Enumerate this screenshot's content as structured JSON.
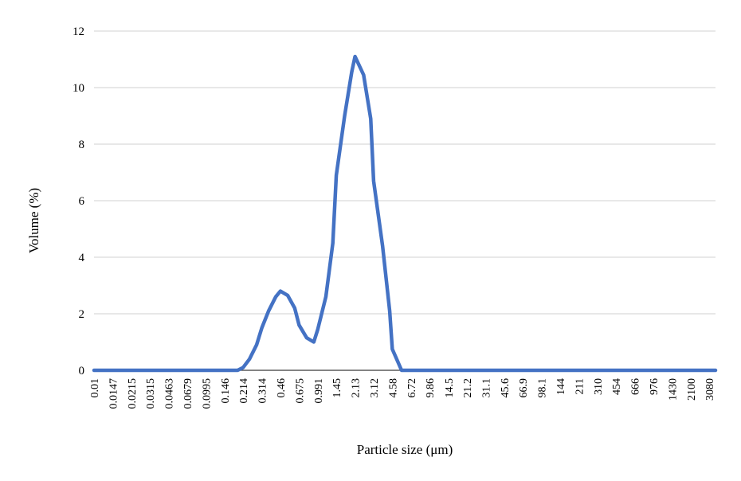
{
  "chart_data": {
    "type": "line",
    "title": "",
    "xlabel": "Particle size (μm)",
    "ylabel": "Volume (%)",
    "ylim": [
      0,
      12
    ],
    "yticks": [
      0,
      2,
      4,
      6,
      8,
      10,
      12
    ],
    "grid": "horizontal",
    "legend": "none",
    "x_scale": "log-categorical",
    "x": [
      0.01,
      0.0116,
      0.0135,
      0.0147,
      0.0167,
      0.0193,
      0.0215,
      0.0234,
      0.0271,
      0.0315,
      0.0346,
      0.04,
      0.0463,
      0.0511,
      0.0591,
      0.0679,
      0.0755,
      0.0874,
      0.0995,
      0.112,
      0.129,
      0.146,
      0.165,
      0.191,
      0.214,
      0.244,
      0.282,
      0.314,
      0.361,
      0.418,
      0.46,
      0.534,
      0.617,
      0.675,
      0.789,
      0.913,
      0.991,
      1.17,
      1.35,
      1.45,
      1.72,
      1.99,
      2.13,
      2.54,
      2.94,
      3.12,
      3.75,
      4.34,
      4.58,
      5.54,
      6.42,
      6.72,
      8.19,
      9.48,
      9.86,
      12.1,
      14.0,
      14.5,
      17.9,
      20.7,
      21.2,
      26.4,
      30.5,
      31.1,
      39.0,
      45.1,
      45.6,
      57.6,
      66.6,
      66.9,
      85.1,
      98.1,
      98.4,
      126,
      144,
      145,
      186,
      211,
      214,
      274,
      310,
      316,
      405,
      454,
      467,
      598,
      666,
      689,
      883,
      976,
      1020,
      1300,
      1430,
      1510,
      1920,
      2100,
      2230,
      2840,
      3080,
      3500
    ],
    "x_tick_labels": [
      "0.01",
      "0.0147",
      "0.0215",
      "0.0315",
      "0.0463",
      "0.0679",
      "0.0995",
      "0.146",
      "0.214",
      "0.314",
      "0.46",
      "0.675",
      "0.991",
      "1.45",
      "2.13",
      "3.12",
      "4.58",
      "6.72",
      "9.86",
      "14.5",
      "21.2",
      "31.1",
      "45.6",
      "66.9",
      "98.1",
      "144",
      "211",
      "310",
      "454",
      "666",
      "976",
      "1430",
      "2100",
      "3080"
    ],
    "series": [
      {
        "name": "",
        "color": "#4472C4",
        "values": [
          0,
          0,
          0,
          0,
          0,
          0,
          0,
          0,
          0,
          0,
          0,
          0,
          0,
          0,
          0,
          0,
          0,
          0,
          0,
          0,
          0,
          0,
          0,
          0,
          0.1,
          0.4,
          0.9,
          1.5,
          2.1,
          2.6,
          2.8,
          2.65,
          2.2,
          1.6,
          1.15,
          1.0,
          1.45,
          2.6,
          4.5,
          6.9,
          9.0,
          10.55,
          11.1,
          10.45,
          8.9,
          6.7,
          4.4,
          2.1,
          0.75,
          0,
          0,
          0,
          0,
          0,
          0,
          0,
          0,
          0,
          0,
          0,
          0,
          0,
          0,
          0,
          0,
          0,
          0,
          0,
          0,
          0,
          0,
          0,
          0,
          0,
          0,
          0,
          0,
          0,
          0,
          0,
          0,
          0,
          0,
          0,
          0,
          0,
          0,
          0,
          0,
          0,
          0,
          0,
          0,
          0,
          0,
          0,
          0,
          0,
          0,
          0
        ]
      }
    ]
  }
}
